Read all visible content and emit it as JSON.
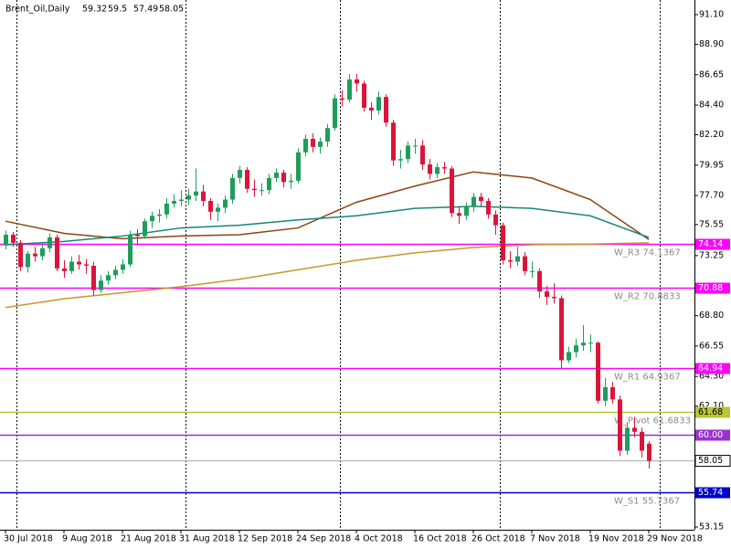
{
  "chart_data": {
    "type": "candlestick",
    "title": "Brent_Oil,Daily",
    "categories": [
      "30 Jul 2018",
      null,
      null,
      null,
      null,
      null,
      null,
      null,
      "9 Aug 2018",
      null,
      null,
      null,
      null,
      null,
      null,
      null,
      "21 Aug 2018",
      null,
      null,
      null,
      null,
      null,
      null,
      null,
      "31 Aug 2018",
      null,
      null,
      null,
      null,
      null,
      null,
      null,
      "12 Sep 2018",
      null,
      null,
      null,
      null,
      null,
      null,
      null,
      "24 Sep 2018",
      null,
      null,
      null,
      null,
      null,
      null,
      null,
      "4 Oct 2018",
      null,
      null,
      null,
      null,
      null,
      null,
      null,
      "16 Oct 2018",
      null,
      null,
      null,
      null,
      null,
      null,
      null,
      "26 Oct 2018",
      null,
      null,
      null,
      null,
      null,
      null,
      null,
      "7 Nov 2018",
      null,
      null,
      null,
      null,
      null,
      null,
      null,
      "19 Nov 2018",
      null,
      null,
      null,
      null,
      null,
      null,
      null,
      "29 Nov 2018"
    ],
    "open": [
      74.0,
      74.8,
      74.2,
      72.4,
      73.4,
      73.2,
      73.8,
      74.6,
      72.3,
      72.1,
      72.8,
      72.6,
      72.5,
      70.7,
      71.4,
      71.8,
      72.2,
      72.6,
      74.8,
      74.7,
      75.8,
      76.2,
      76.3,
      77.1,
      77.3,
      77.4,
      77.7,
      78.0,
      77.3,
      76.5,
      76.8,
      77.4,
      79.0,
      79.6,
      78.2,
      78.1,
      78.1,
      79.0,
      79.4,
      78.7,
      78.8,
      80.9,
      81.9,
      81.3,
      81.7,
      82.7,
      84.9,
      84.8,
      86.3,
      86.0,
      84.2,
      84.0,
      85.0,
      83.1,
      80.3,
      80.4,
      81.4,
      81.4,
      80.0,
      79.3,
      79.8,
      79.7,
      76.4,
      76.2,
      76.9,
      77.6,
      77.3,
      76.3,
      75.5,
      72.9,
      72.8,
      73.2,
      72.1,
      72.1,
      70.6,
      70.2,
      70.1,
      65.5,
      66.1,
      66.6,
      66.8,
      66.8,
      62.5,
      63.5,
      62.6,
      58.8,
      60.5,
      60.2,
      59.32
    ],
    "high": [
      75.1,
      75.0,
      74.4,
      73.6,
      73.9,
      74.1,
      74.9,
      74.8,
      72.9,
      73.2,
      73.3,
      73.0,
      72.8,
      71.8,
      72.1,
      72.5,
      73.0,
      75.1,
      75.2,
      76.0,
      76.5,
      76.7,
      77.5,
      77.8,
      78.1,
      78.2,
      79.7,
      78.5,
      77.5,
      77.1,
      77.7,
      79.3,
      79.9,
      79.8,
      78.9,
      78.6,
      79.3,
      79.7,
      79.6,
      79.3,
      81.2,
      82.2,
      82.3,
      82.0,
      83.0,
      85.2,
      85.5,
      86.7,
      86.7,
      86.2,
      84.6,
      85.4,
      85.2,
      83.3,
      81.1,
      81.7,
      81.9,
      81.8,
      80.4,
      80.1,
      80.2,
      79.9,
      76.9,
      77.2,
      77.9,
      77.9,
      77.5,
      76.6,
      75.7,
      73.6,
      73.9,
      73.5,
      72.8,
      72.3,
      71.0,
      71.2,
      70.3,
      66.5,
      67.1,
      68.1,
      67.4,
      66.9,
      64.2,
      63.9,
      62.9,
      60.9,
      61.3,
      60.5,
      59.5
    ],
    "low": [
      73.7,
      73.9,
      72.1,
      72.0,
      72.8,
      72.9,
      73.5,
      72.1,
      71.6,
      71.9,
      72.2,
      71.9,
      70.3,
      70.5,
      71.1,
      71.5,
      71.9,
      72.4,
      74.1,
      74.5,
      75.3,
      75.7,
      76.0,
      76.8,
      76.9,
      77.0,
      77.3,
      76.9,
      75.9,
      75.8,
      76.4,
      77.1,
      78.6,
      77.9,
      77.6,
      77.7,
      77.8,
      78.7,
      78.3,
      78.2,
      78.6,
      80.6,
      80.9,
      80.8,
      81.3,
      82.5,
      84.3,
      84.6,
      85.4,
      83.9,
      83.3,
      83.7,
      82.8,
      79.9,
      79.7,
      80.1,
      80.8,
      79.6,
      78.9,
      79.0,
      79.3,
      76.1,
      75.6,
      75.9,
      76.5,
      76.9,
      76.0,
      74.8,
      72.6,
      72.3,
      72.5,
      71.8,
      71.6,
      70.1,
      69.6,
      69.7,
      64.9,
      65.3,
      65.7,
      66.2,
      66.1,
      62.3,
      62.1,
      62.3,
      58.4,
      58.5,
      59.8,
      58.3,
      57.49
    ],
    "close": [
      74.8,
      74.2,
      72.4,
      73.4,
      73.2,
      73.8,
      74.6,
      72.3,
      72.1,
      72.8,
      72.6,
      72.5,
      70.7,
      71.4,
      71.8,
      72.2,
      72.6,
      74.8,
      74.7,
      75.8,
      76.2,
      76.3,
      77.1,
      77.3,
      77.4,
      77.7,
      78.0,
      77.3,
      76.5,
      76.8,
      77.4,
      79.0,
      79.6,
      78.2,
      78.1,
      78.1,
      79.0,
      79.4,
      78.7,
      78.8,
      80.9,
      81.9,
      81.3,
      81.7,
      82.7,
      84.9,
      84.8,
      86.3,
      86.0,
      84.2,
      84.0,
      85.0,
      83.1,
      80.3,
      80.4,
      81.4,
      81.4,
      80.0,
      79.3,
      79.8,
      79.7,
      76.4,
      76.2,
      76.9,
      77.6,
      77.3,
      76.3,
      75.5,
      72.9,
      72.8,
      73.2,
      72.1,
      72.1,
      70.6,
      70.2,
      70.1,
      65.5,
      66.1,
      66.6,
      66.8,
      66.8,
      62.5,
      63.5,
      62.6,
      58.8,
      60.5,
      60.2,
      58.8,
      58.05
    ],
    "up_color": "#1e9e5a",
    "down_color": "#dc143c",
    "moving_averages": [
      {
        "color": "#8b4513",
        "x": [
          0,
          8,
          16,
          24,
          32,
          40,
          48,
          56,
          64,
          72,
          80,
          88
        ],
        "values": [
          75.8,
          74.9,
          74.5,
          74.7,
          74.8,
          75.3,
          77.2,
          78.4,
          79.45,
          79.0,
          77.4,
          74.45
        ]
      },
      {
        "color": "#16867a",
        "x": [
          0,
          8,
          16,
          24,
          32,
          40,
          48,
          56,
          64,
          72,
          80,
          88
        ],
        "values": [
          74.05,
          74.3,
          74.7,
          75.3,
          75.5,
          75.9,
          76.2,
          76.75,
          76.9,
          76.75,
          76.2,
          74.6
        ]
      },
      {
        "color": "#c8962d",
        "x": [
          0,
          8,
          16,
          24,
          32,
          40,
          48,
          56,
          64,
          72,
          80,
          88
        ],
        "values": [
          69.4,
          70.05,
          70.5,
          70.95,
          71.5,
          72.2,
          72.9,
          73.45,
          73.85,
          74.05,
          74.1,
          74.2
        ]
      }
    ],
    "levels": [
      {
        "name": "W_R3 74.1367",
        "value": 74.1367,
        "tag": "74.14",
        "color": "#ff00ff"
      },
      {
        "name": "W_R2 70.8833",
        "value": 70.8833,
        "tag": "70.88",
        "color": "#ff00ff"
      },
      {
        "name": "W_R1 64.9367",
        "value": 64.9367,
        "tag": "64.94",
        "color": "#ff00ff"
      },
      {
        "name": "W_Pivot 61.6833",
        "value": 61.6833,
        "tag": "61.68",
        "color": "#b8c43a"
      },
      {
        "value": 60,
        "tag": "60.00",
        "color": "#9932cc"
      },
      {
        "name": "W_S1 55.7367",
        "value": 55.7367,
        "tag": "55.74",
        "color": "#0000cd"
      }
    ],
    "current_price_color": "#a9a9a9",
    "ylim": [
      53.15,
      91.1
    ],
    "yticks": [
      {
        "value": 53.15,
        "label": "53.15"
      },
      {
        "value": 62.1,
        "label": "62.10"
      },
      {
        "value": 64.3,
        "label": "64.30"
      },
      {
        "value": 66.55,
        "label": "66.55"
      },
      {
        "value": 68.8,
        "label": "68.80"
      },
      {
        "value": 73.25,
        "label": "73.25"
      },
      {
        "value": 75.55,
        "label": "75.55"
      },
      {
        "value": 77.7,
        "label": "77.70"
      },
      {
        "value": 79.95,
        "label": "79.95"
      },
      {
        "value": 82.2,
        "label": "82.20"
      },
      {
        "value": 84.4,
        "label": "84.40"
      },
      {
        "value": 86.65,
        "label": "86.65"
      },
      {
        "value": 88.9,
        "label": "88.90"
      },
      {
        "value": 91.1,
        "label": "91.10"
      }
    ]
  }
}
